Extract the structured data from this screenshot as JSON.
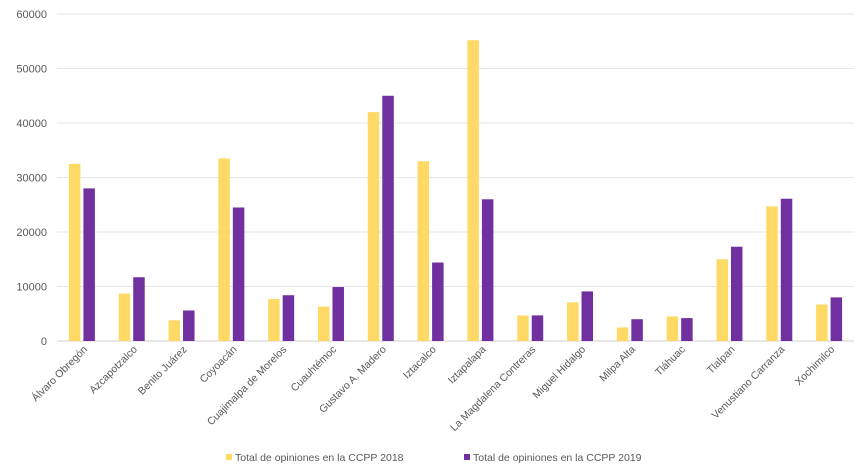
{
  "chart_data": {
    "type": "bar",
    "title": "",
    "xlabel": "",
    "ylabel": "",
    "ylim": [
      0,
      60000
    ],
    "yticks": [
      0,
      10000,
      20000,
      30000,
      40000,
      50000,
      60000
    ],
    "grid": true,
    "legend_position": "bottom",
    "categories": [
      "Álvaro Obregón",
      "Azcapotzalco",
      "Benito Juárez",
      "Coyoacán",
      "Cuajimalpa de Morelos",
      "Cuauhtémoc",
      "Gustavo A. Madero",
      "Iztacalco",
      "Iztapalapa",
      "La Magdalena Contreras",
      "Miguel Hidalgo",
      "Milpa Alta",
      "Tláhuac",
      "Tlalpan",
      "Venustiano Carranza",
      "Xochimilco"
    ],
    "series": [
      {
        "name": "Total de opiniones en la CCPP 2018",
        "color": "#FFD966",
        "values": [
          32500,
          8700,
          3800,
          33500,
          7700,
          6300,
          42000,
          33000,
          55200,
          4700,
          7100,
          2500,
          4500,
          15000,
          24700,
          6700
        ]
      },
      {
        "name": "Total de opiniones en la CCPP 2019",
        "color": "#7030A0",
        "values": [
          28000,
          11700,
          5600,
          24500,
          8400,
          9900,
          45000,
          14400,
          26000,
          4700,
          9100,
          4000,
          4200,
          17300,
          26100,
          8000
        ]
      }
    ]
  }
}
